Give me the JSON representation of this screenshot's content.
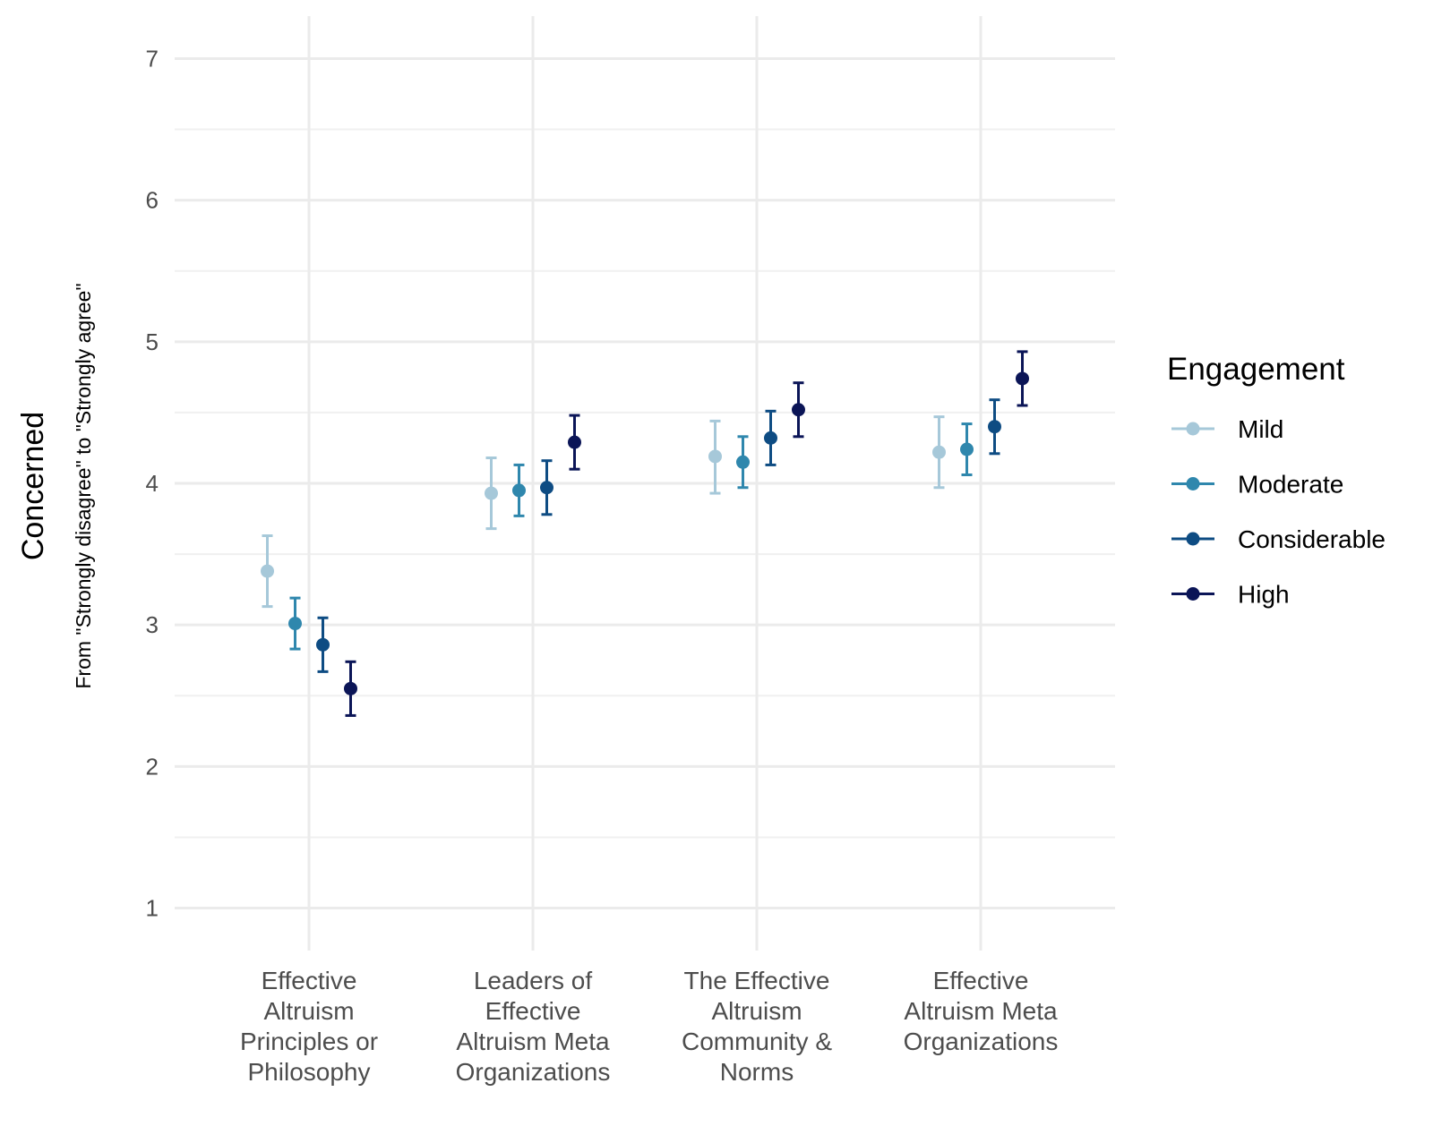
{
  "chart_data": {
    "type": "scatter",
    "subtype": "point-with-error-bars",
    "ylabel": "Concerned",
    "ysublabel": "From \"Strongly disagree\" to \"Strongly agree\"",
    "xlabel": "",
    "ylim": [
      0.7,
      7.3
    ],
    "yticks": [
      "1",
      "2",
      "3",
      "4",
      "5",
      "6",
      "7"
    ],
    "categories": [
      [
        "Effective",
        "Altruism",
        "Principles or",
        "Philosophy"
      ],
      [
        "Leaders of",
        "Effective",
        "Altruism Meta",
        "Organizations"
      ],
      [
        "The Effective",
        "Altruism",
        "Community &",
        "Norms"
      ],
      [
        "Effective",
        "Altruism Meta",
        "Organizations"
      ]
    ],
    "legend": {
      "title": "Engagement",
      "position": "right"
    },
    "series": [
      {
        "name": "Mild",
        "color": "#a6c8d9",
        "values": [
          3.38,
          3.93,
          4.19,
          4.22
        ],
        "lower": [
          3.13,
          3.68,
          3.93,
          3.97
        ],
        "upper": [
          3.63,
          4.18,
          4.44,
          4.47
        ]
      },
      {
        "name": "Moderate",
        "color": "#2f87ad",
        "values": [
          3.01,
          3.95,
          4.15,
          4.24
        ],
        "lower": [
          2.83,
          3.77,
          3.97,
          4.06
        ],
        "upper": [
          3.19,
          4.13,
          4.33,
          4.42
        ]
      },
      {
        "name": "Considerable",
        "color": "#0e4c83",
        "values": [
          2.86,
          3.97,
          4.32,
          4.4
        ],
        "lower": [
          2.67,
          3.78,
          4.13,
          4.21
        ],
        "upper": [
          3.05,
          4.16,
          4.51,
          4.59
        ]
      },
      {
        "name": "High",
        "color": "#0b1557",
        "values": [
          2.55,
          4.29,
          4.52,
          4.74
        ],
        "lower": [
          2.36,
          4.1,
          4.33,
          4.55
        ],
        "upper": [
          2.74,
          4.48,
          4.71,
          4.93
        ]
      }
    ]
  }
}
